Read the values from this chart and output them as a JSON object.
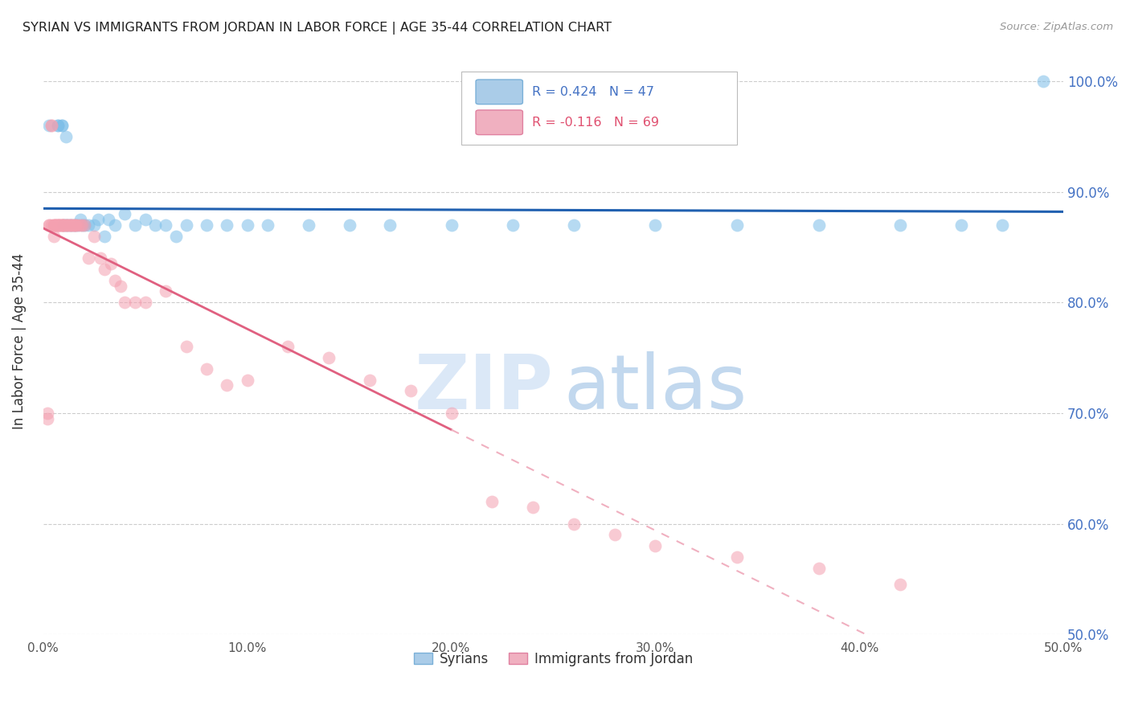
{
  "title": "SYRIAN VS IMMIGRANTS FROM JORDAN IN LABOR FORCE | AGE 35-44 CORRELATION CHART",
  "source": "Source: ZipAtlas.com",
  "ylabel": "In Labor Force | Age 35-44",
  "xlim": [
    0.0,
    0.5
  ],
  "ylim": [
    0.5,
    1.03
  ],
  "yticks": [
    0.5,
    0.6,
    0.7,
    0.8,
    0.9,
    1.0
  ],
  "ytick_labels": [
    "50.0%",
    "60.0%",
    "70.0%",
    "80.0%",
    "90.0%",
    "100.0%"
  ],
  "xticks": [
    0.0,
    0.1,
    0.2,
    0.3,
    0.4,
    0.5
  ],
  "xtick_labels": [
    "0.0%",
    "10.0%",
    "20.0%",
    "30.0%",
    "40.0%",
    "50.0%"
  ],
  "legend_r1": "R = 0.424   N = 47",
  "legend_r2": "R = -0.116   N = 69",
  "blue_color": "#7abde8",
  "pink_color": "#f4a0b0",
  "blue_line_color": "#2060b0",
  "pink_line_color": "#e06080",
  "pink_dash_color": "#f0b0c0",
  "watermark_zip_color": "#ccdff5",
  "watermark_atlas_color": "#a8c8e8",
  "blue_scatter_x": [
    0.003,
    0.007,
    0.007,
    0.009,
    0.009,
    0.01,
    0.011,
    0.011,
    0.012,
    0.013,
    0.014,
    0.015,
    0.016,
    0.017,
    0.018,
    0.019,
    0.02,
    0.022,
    0.025,
    0.027,
    0.03,
    0.032,
    0.035,
    0.04,
    0.045,
    0.05,
    0.055,
    0.06,
    0.065,
    0.07,
    0.08,
    0.09,
    0.1,
    0.11,
    0.13,
    0.15,
    0.17,
    0.2,
    0.23,
    0.26,
    0.3,
    0.34,
    0.38,
    0.42,
    0.45,
    0.47,
    0.49
  ],
  "blue_scatter_y": [
    0.96,
    0.96,
    0.96,
    0.96,
    0.96,
    0.87,
    0.87,
    0.95,
    0.87,
    0.87,
    0.87,
    0.87,
    0.87,
    0.87,
    0.875,
    0.87,
    0.87,
    0.87,
    0.87,
    0.875,
    0.86,
    0.875,
    0.87,
    0.88,
    0.87,
    0.875,
    0.87,
    0.87,
    0.86,
    0.87,
    0.87,
    0.87,
    0.87,
    0.87,
    0.87,
    0.87,
    0.87,
    0.87,
    0.87,
    0.87,
    0.87,
    0.87,
    0.87,
    0.87,
    0.87,
    0.87,
    1.0
  ],
  "pink_scatter_x": [
    0.002,
    0.002,
    0.003,
    0.003,
    0.004,
    0.004,
    0.004,
    0.005,
    0.005,
    0.005,
    0.006,
    0.006,
    0.006,
    0.007,
    0.007,
    0.007,
    0.008,
    0.008,
    0.008,
    0.009,
    0.009,
    0.009,
    0.01,
    0.01,
    0.01,
    0.011,
    0.011,
    0.012,
    0.012,
    0.013,
    0.013,
    0.014,
    0.014,
    0.015,
    0.015,
    0.016,
    0.016,
    0.017,
    0.018,
    0.019,
    0.02,
    0.022,
    0.025,
    0.028,
    0.03,
    0.033,
    0.035,
    0.038,
    0.04,
    0.045,
    0.05,
    0.06,
    0.07,
    0.08,
    0.09,
    0.1,
    0.12,
    0.14,
    0.16,
    0.18,
    0.2,
    0.22,
    0.24,
    0.26,
    0.28,
    0.3,
    0.34,
    0.38,
    0.42
  ],
  "pink_scatter_y": [
    0.695,
    0.7,
    0.87,
    0.87,
    0.96,
    0.96,
    0.87,
    0.87,
    0.87,
    0.86,
    0.87,
    0.87,
    0.87,
    0.87,
    0.87,
    0.87,
    0.87,
    0.87,
    0.87,
    0.87,
    0.87,
    0.87,
    0.87,
    0.87,
    0.87,
    0.87,
    0.87,
    0.87,
    0.87,
    0.87,
    0.87,
    0.87,
    0.87,
    0.87,
    0.87,
    0.87,
    0.87,
    0.87,
    0.87,
    0.87,
    0.87,
    0.84,
    0.86,
    0.84,
    0.83,
    0.835,
    0.82,
    0.815,
    0.8,
    0.8,
    0.8,
    0.81,
    0.76,
    0.74,
    0.725,
    0.73,
    0.76,
    0.75,
    0.73,
    0.72,
    0.7,
    0.62,
    0.615,
    0.6,
    0.59,
    0.58,
    0.57,
    0.56,
    0.545
  ]
}
